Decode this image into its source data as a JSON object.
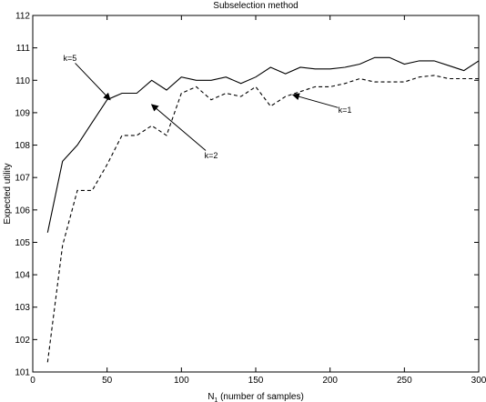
{
  "chart_data": {
    "type": "line",
    "title": "Subselection method",
    "xlabel": "N",
    "xlabel_sub": "1",
    "xlabel_rest": " (number of samples)",
    "ylabel": "Expected utility",
    "xlim": [
      0,
      300
    ],
    "ylim": [
      101,
      112
    ],
    "xticks": [
      0,
      50,
      100,
      150,
      200,
      250,
      300
    ],
    "yticks": [
      101,
      102,
      103,
      104,
      105,
      106,
      107,
      108,
      109,
      110,
      111,
      112
    ],
    "grid": false,
    "series": [
      {
        "style": "solid",
        "x": [
          10,
          20,
          30,
          40,
          50,
          60,
          70,
          80,
          90,
          100,
          110,
          120,
          130,
          140,
          150,
          160,
          170,
          180,
          190,
          200,
          210,
          220,
          230,
          240,
          250,
          260,
          270,
          280,
          290,
          300
        ],
        "y": [
          105.3,
          107.5,
          108.0,
          108.7,
          109.4,
          109.6,
          109.6,
          110.0,
          109.7,
          110.1,
          110.0,
          110.0,
          110.1,
          109.9,
          110.1,
          110.4,
          110.2,
          110.4,
          110.35,
          110.35,
          110.4,
          110.5,
          110.7,
          110.7,
          110.5,
          110.6,
          110.6,
          110.45,
          110.3,
          110.6
        ]
      },
      {
        "style": "dashed",
        "x": [
          10,
          20,
          30,
          40,
          50,
          60,
          70,
          80,
          90,
          100,
          110,
          120,
          130,
          140,
          150,
          160,
          170,
          180,
          190,
          200,
          210,
          220,
          230,
          240,
          250,
          260,
          270,
          280,
          290,
          300
        ],
        "y": [
          101.3,
          104.9,
          106.6,
          106.6,
          107.4,
          108.3,
          108.3,
          108.6,
          108.3,
          109.6,
          109.8,
          109.4,
          109.6,
          109.5,
          109.8,
          109.2,
          109.5,
          109.65,
          109.8,
          109.8,
          109.9,
          110.05,
          109.95,
          109.95,
          109.95,
          110.1,
          110.15,
          110.05,
          110.05,
          110.05
        ]
      }
    ],
    "annotations": [
      {
        "text": "k=5",
        "x": 25,
        "y": 110.6,
        "arrow_to": [
          52,
          109.4
        ]
      },
      {
        "text": "k=2",
        "x": 120,
        "y": 107.6,
        "arrow_to": [
          80,
          109.25
        ]
      },
      {
        "text": "k=1",
        "x": 210,
        "y": 109.0,
        "arrow_to": [
          175,
          109.55
        ]
      }
    ]
  }
}
